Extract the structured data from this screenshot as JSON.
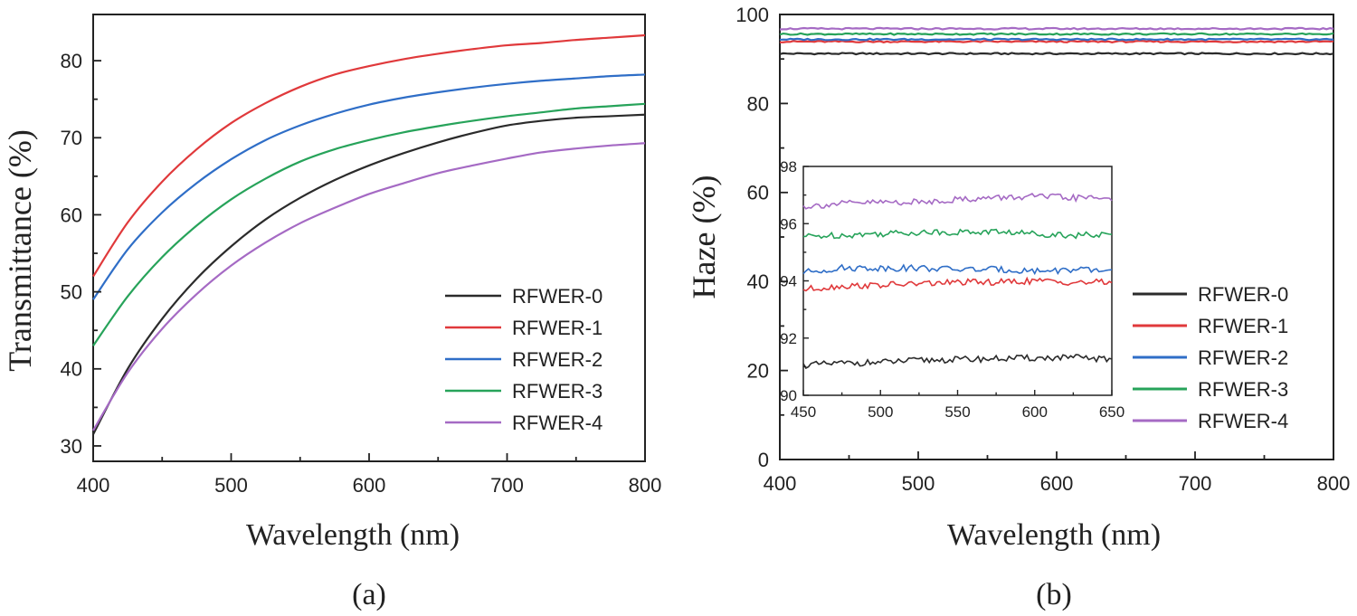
{
  "chart_data": [
    {
      "type": "line",
      "panel_label": "(a)",
      "xlabel": "Wavelength (nm)",
      "ylabel": "Transmittance (%)",
      "xlim": [
        400,
        800
      ],
      "ylim": [
        28,
        86
      ],
      "xticks": [
        400,
        500,
        600,
        700,
        800
      ],
      "yticks": [
        30,
        40,
        50,
        60,
        70,
        80
      ],
      "legend_position": "bottom-right",
      "x": [
        400,
        425,
        450,
        475,
        500,
        525,
        550,
        575,
        600,
        625,
        650,
        675,
        700,
        725,
        750,
        775,
        800
      ],
      "series": [
        {
          "name": "RFWER-0",
          "color": "#2b2b2b",
          "values": [
            31.5,
            40.0,
            46.5,
            51.7,
            55.9,
            59.4,
            62.2,
            64.5,
            66.4,
            68.0,
            69.4,
            70.6,
            71.6,
            72.2,
            72.6,
            72.8,
            73.0
          ]
        },
        {
          "name": "RFWER-1",
          "color": "#e0393b",
          "values": [
            52.0,
            59.0,
            64.3,
            68.5,
            71.9,
            74.5,
            76.6,
            78.2,
            79.3,
            80.2,
            80.9,
            81.5,
            82.0,
            82.3,
            82.7,
            83.0,
            83.3
          ]
        },
        {
          "name": "RFWER-2",
          "color": "#2f6ec7",
          "values": [
            49.0,
            55.5,
            60.3,
            64.1,
            67.2,
            69.7,
            71.6,
            73.1,
            74.3,
            75.2,
            75.9,
            76.5,
            77.0,
            77.4,
            77.7,
            78.0,
            78.2
          ]
        },
        {
          "name": "RFWER-3",
          "color": "#27a35a",
          "values": [
            43.0,
            49.4,
            54.5,
            58.6,
            62.0,
            64.7,
            66.9,
            68.5,
            69.7,
            70.7,
            71.5,
            72.2,
            72.8,
            73.3,
            73.8,
            74.1,
            74.4
          ]
        },
        {
          "name": "RFWER-4",
          "color": "#a56ac4",
          "values": [
            32.0,
            39.5,
            45.2,
            49.7,
            53.4,
            56.4,
            58.9,
            60.9,
            62.7,
            64.1,
            65.4,
            66.4,
            67.3,
            68.1,
            68.6,
            69.0,
            69.3
          ]
        }
      ]
    },
    {
      "type": "line",
      "panel_label": "(b)",
      "xlabel": "Wavelength (nm)",
      "ylabel": "Haze (%)",
      "xlim": [
        400,
        800
      ],
      "ylim": [
        0,
        100
      ],
      "xticks": [
        400,
        500,
        600,
        700,
        800
      ],
      "yticks": [
        0,
        20,
        40,
        60,
        80,
        100
      ],
      "legend_position": "bottom-right",
      "series": [
        {
          "name": "RFWER-0",
          "color": "#2b2b2b",
          "level": 91.2
        },
        {
          "name": "RFWER-1",
          "color": "#e0393b",
          "level": 93.9
        },
        {
          "name": "RFWER-2",
          "color": "#2f6ec7",
          "level": 94.4
        },
        {
          "name": "RFWER-3",
          "color": "#27a35a",
          "level": 95.6
        },
        {
          "name": "RFWER-4",
          "color": "#a56ac4",
          "level": 96.8
        }
      ],
      "inset": {
        "xlim": [
          450,
          650
        ],
        "ylim": [
          90,
          98
        ],
        "xticks": [
          450,
          500,
          550,
          600,
          650
        ],
        "yticks": [
          90,
          92,
          94,
          96,
          98
        ],
        "x": [
          450,
          475,
          500,
          525,
          550,
          575,
          600,
          625,
          650
        ],
        "series": [
          {
            "name": "RFWER-0",
            "values": [
              91.05,
              91.12,
              91.15,
              91.22,
              91.25,
              91.28,
              91.3,
              91.32,
              91.25
            ]
          },
          {
            "name": "RFWER-1",
            "values": [
              93.7,
              93.82,
              93.85,
              93.9,
              93.95,
              93.95,
              94.0,
              93.95,
              93.95
            ]
          },
          {
            "name": "RFWER-2",
            "values": [
              94.3,
              94.45,
              94.45,
              94.45,
              94.4,
              94.4,
              94.35,
              94.38,
              94.35
            ]
          },
          {
            "name": "RFWER-3",
            "values": [
              95.55,
              95.6,
              95.65,
              95.7,
              95.7,
              95.72,
              95.65,
              95.6,
              95.6
            ]
          },
          {
            "name": "RFWER-4",
            "values": [
              96.6,
              96.7,
              96.75,
              96.75,
              96.85,
              96.9,
              96.95,
              96.9,
              96.9
            ]
          }
        ]
      }
    }
  ]
}
